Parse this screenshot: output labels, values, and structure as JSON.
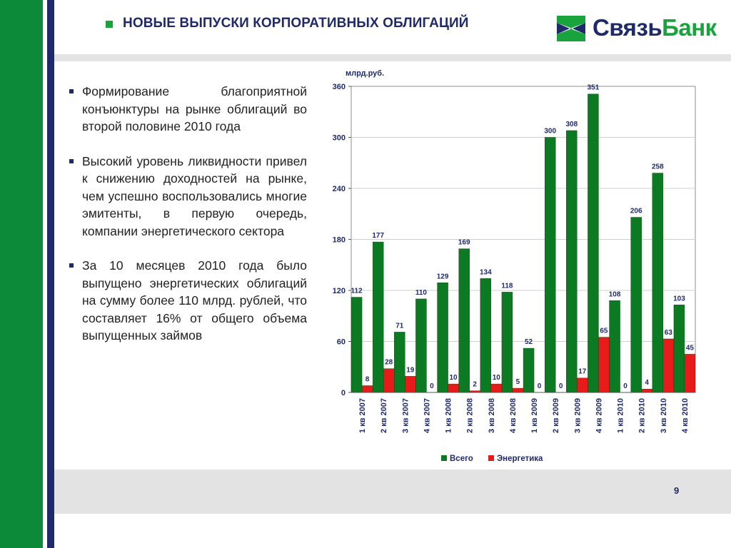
{
  "header": {
    "title": "НОВЫЕ ВЫПУСКИ КОРПОРАТИВНЫХ ОБЛИГАЦИЙ",
    "logo_part1": "Связь",
    "logo_part2": "Банк"
  },
  "bullets": [
    "Формирование благоприятной конъюнктуры на рынке облигаций во второй половине 2010 года",
    "Высокий уровень ликвидности привел к снижению доходностей на рынке, чем успешно воспользовались многие эмитенты, в первую очередь, компании энергетического сектора",
    "За 10 месяцев 2010 года было выпущено энергетических облигаций на сумму более 110 млрд. рублей, что составляет 16% от общего объема выпущенных займов"
  ],
  "page_number": "9",
  "chart_data": {
    "type": "bar",
    "unit_label": "млрд.руб.",
    "categories": [
      "1 кв 2007",
      "2 кв 2007",
      "3 кв 2007",
      "4 кв 2007",
      "1 кв 2008",
      "2 кв 2008",
      "3 кв 2008",
      "4 кв 2008",
      "1 кв 2009",
      "2 кв 2009",
      "3 кв 2009",
      "4 кв 2009",
      "1 кв 2010",
      "2 кв 2010",
      "3 кв 2010",
      "4 кв 2010"
    ],
    "series": [
      {
        "name": "Всего",
        "color": "#0c7a22",
        "values": [
          112,
          177,
          71,
          110,
          129,
          169,
          134,
          118,
          52,
          300,
          308,
          351,
          108,
          206,
          258,
          103
        ]
      },
      {
        "name": "Энергетика",
        "color": "#e81b1b",
        "values": [
          8,
          28,
          19,
          0,
          10,
          2,
          10,
          5,
          0,
          0,
          17,
          65,
          0,
          4,
          63,
          45
        ]
      }
    ],
    "ylim": [
      0,
      360
    ],
    "yticks": [
      0,
      60,
      120,
      180,
      240,
      300,
      360
    ],
    "grid": true,
    "legend": "bottom",
    "label_color": "#1f2a6b"
  }
}
